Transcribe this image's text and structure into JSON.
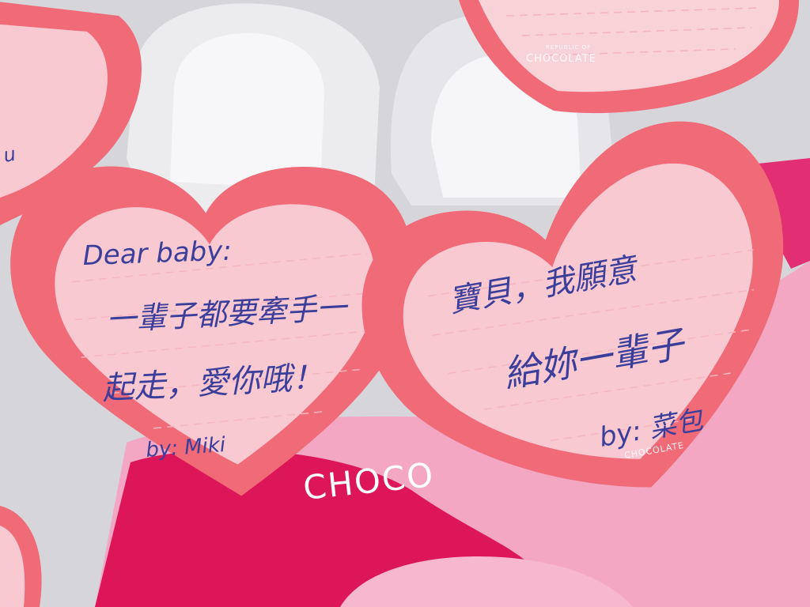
{
  "colors": {
    "heart_outer": "#f06a78",
    "heart_inner": "#f9c4cc",
    "ink": "#3b3f9a",
    "backdrop_magenta": "#e0175a",
    "backdrop_pink": "#f4a1bf",
    "paper_grey": "#e9e9ec"
  },
  "notes": [
    {
      "id": "left-heart",
      "lines": [
        "Dear baby:",
        "一輩子都要牽手一",
        "起走，愛你哦！",
        "by: Miki"
      ]
    },
    {
      "id": "right-heart",
      "lines": [
        "寶貝，我願意",
        "給妳一輩子",
        "by: 菜包"
      ],
      "brand": "CHOCOLATE"
    },
    {
      "id": "top-heart",
      "brand_top": "REPUBLIC OF",
      "brand": "CHOCOLATE"
    }
  ],
  "backdrop": {
    "brand": "CHOCO"
  }
}
